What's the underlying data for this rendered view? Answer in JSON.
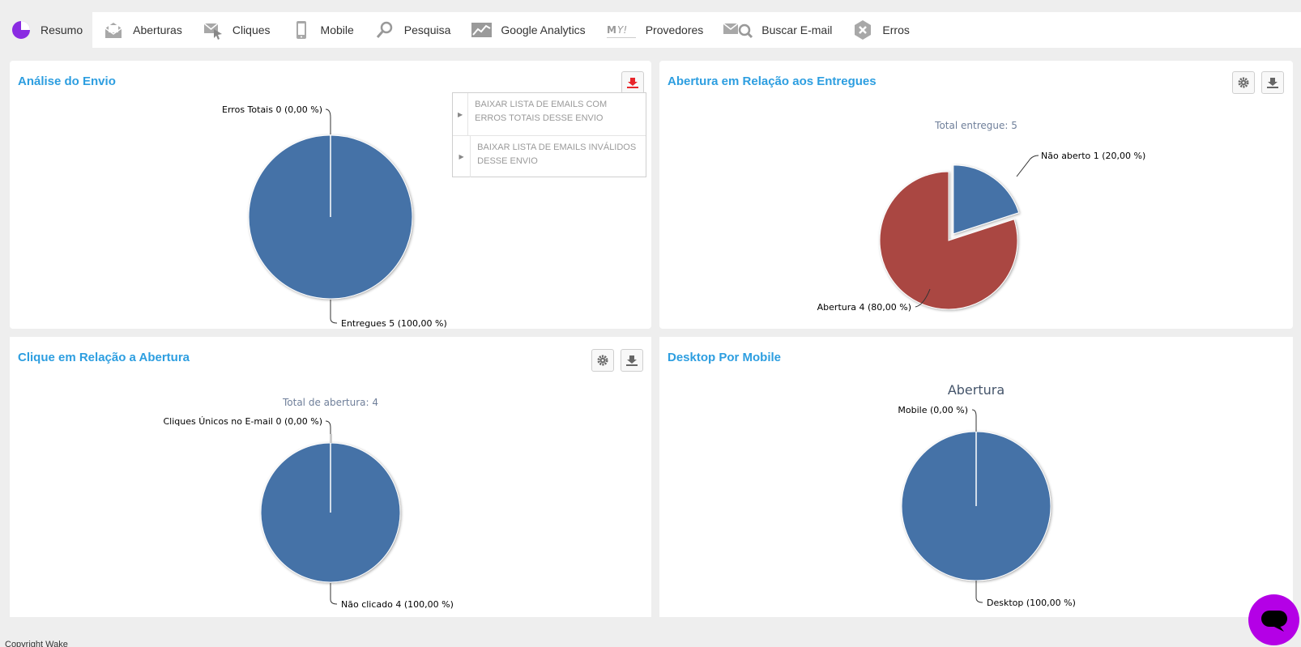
{
  "nav": {
    "tabs": [
      {
        "label": "Resumo",
        "icon": "pie-chart-icon"
      },
      {
        "label": "Aberturas",
        "icon": "envelope-open-icon"
      },
      {
        "label": "Cliques",
        "icon": "envelope-cursor-icon"
      },
      {
        "label": "Mobile",
        "icon": "mobile-phone-icon"
      },
      {
        "label": "Pesquisa",
        "icon": "magnifier-icon"
      },
      {
        "label": "Google Analytics",
        "icon": "line-chart-icon"
      },
      {
        "label": "Provedores",
        "icon": "providers-logo-icon"
      },
      {
        "label": "Buscar E-mail",
        "icon": "envelope-search-icon"
      },
      {
        "label": "Erros",
        "icon": "error-x-icon"
      }
    ],
    "active_color": "#8a2be2"
  },
  "panels": {
    "envio": {
      "title": "Análise do Envio",
      "menu": {
        "items": [
          "BAIXAR LISTA DE EMAILS COM ERROS TOTAIS DESSE ENVIO",
          "BAIXAR LISTA DE EMAILS INVÁLIDOS DESSE ENVIO"
        ]
      }
    },
    "abertura": {
      "title": "Abertura em Relação aos Entregues"
    },
    "clique": {
      "title": "Clique em Relação a Abertura"
    },
    "desktop": {
      "title": "Desktop Por Mobile"
    }
  },
  "chart_data": [
    {
      "type": "pie",
      "title": "",
      "slices": [
        {
          "label": "Erros Totais",
          "value": 0,
          "percent_label": "0,00 %"
        },
        {
          "label": "Entregues",
          "value": 5,
          "percent_label": "100,00 %"
        }
      ],
      "colors": [
        "#4572a7",
        "#4572a7"
      ]
    },
    {
      "type": "pie",
      "title": "Total entregue: 5",
      "slices": [
        {
          "label": "Não aberto",
          "value": 1,
          "percent_label": "20,00 %"
        },
        {
          "label": "Abertura",
          "value": 4,
          "percent_label": "80,00 %"
        }
      ],
      "colors": [
        "#4572a7",
        "#aa4643"
      ]
    },
    {
      "type": "pie",
      "title": "Total de abertura: 4",
      "slices": [
        {
          "label": "Cliques Únicos no E-mail",
          "value": 0,
          "percent_label": "0,00 %"
        },
        {
          "label": "Não clicado",
          "value": 4,
          "percent_label": "100,00 %"
        }
      ],
      "colors": [
        "#4572a7",
        "#4572a7"
      ]
    },
    {
      "type": "pie",
      "title": "Abertura",
      "slices": [
        {
          "label": "Mobile",
          "value": 0,
          "percent_label": "0,00 %"
        },
        {
          "label": "Desktop",
          "value": null,
          "percent_label": "100,00 %"
        }
      ],
      "colors": [
        "#4572a7",
        "#4572a7"
      ]
    }
  ],
  "labels": {
    "c1_top": "Erros Totais 0 (0,00 %)",
    "c1_bottom": "Entregues 5 (100,00 %)",
    "c2_a": "Não aberto 1 (20,00 %)",
    "c2_b": "Abertura 4 (80,00 %)",
    "c3_top": "Cliques Únicos no E-mail 0 (0,00 %)",
    "c3_bottom": "Não clicado 4 (100,00 %)",
    "c4_top": "Mobile (0,00 %)",
    "c4_bottom": "Desktop (100,00 %)"
  },
  "footer": {
    "text": "Copyright Wake"
  }
}
